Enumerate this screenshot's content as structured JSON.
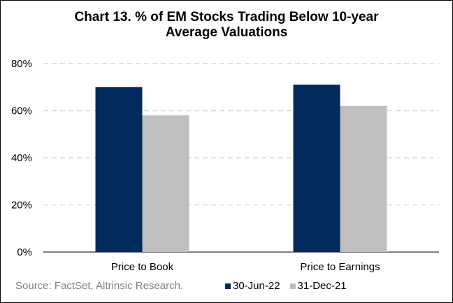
{
  "chart_data": {
    "type": "bar",
    "title_lines": [
      "Chart 13. % of EM Stocks Trading Below 10-year",
      "Average Valuations"
    ],
    "categories": [
      "Price to Book",
      "Price to Earnings"
    ],
    "series": [
      {
        "name": "30-Jun-22",
        "color": "#002b5c",
        "values": [
          0.7,
          0.71
        ]
      },
      {
        "name": "31-Dec-21",
        "color": "#bfbfbf",
        "values": [
          0.58,
          0.62
        ]
      }
    ],
    "ylim": [
      0,
      0.8
    ],
    "yticks": [
      0,
      0.2,
      0.4,
      0.6,
      0.8
    ],
    "ytick_labels": [
      "0%",
      "20%",
      "40%",
      "60%",
      "80%"
    ],
    "grid": true,
    "legend_position": "bottom-right"
  },
  "source_note": "Source: FactSet, Altrinsic Research."
}
